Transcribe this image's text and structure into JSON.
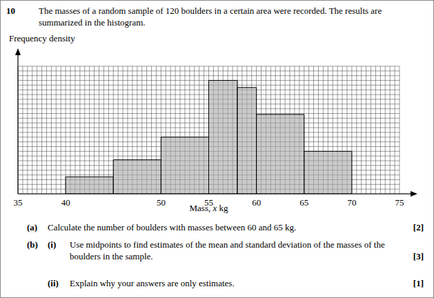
{
  "number": "10",
  "intro": [
    "The masses of a random sample of 120 boulders in a certain area were recorded. The results are",
    "summarized in the histogram."
  ],
  "chart_data": {
    "type": "histogram",
    "ylabel": "Frequency density",
    "xlabel": "Mass, x kg",
    "bins": [
      40,
      45,
      50,
      55,
      58,
      60,
      65,
      70
    ],
    "values": [
      1.2,
      2.4,
      4,
      8,
      7.5,
      5.6,
      3
    ],
    "color": "#a8a8a8",
    "xlim": [
      35,
      75
    ],
    "ylim": [
      0,
      9
    ],
    "xticks": [
      35,
      40,
      50,
      55,
      60,
      65,
      70,
      75
    ],
    "grid": true,
    "tick_labels": "x"
  },
  "parts": [
    {
      "label": "(a)",
      "lines": [
        "Calculate the number of boulders with masses between 60 and 65 kg."
      ],
      "marks": "[2]"
    },
    {
      "label": "(b)",
      "subparts": [
        {
          "label": "(i)",
          "lines": [
            "Use midpoints to find estimates of the mean and standard deviation of the masses of the",
            "boulders in the sample."
          ],
          "marks": "[3]"
        },
        {
          "label": "(ii)",
          "lines": [
            "Explain why your answers are only estimates."
          ],
          "marks": "[1]"
        }
      ]
    }
  ]
}
